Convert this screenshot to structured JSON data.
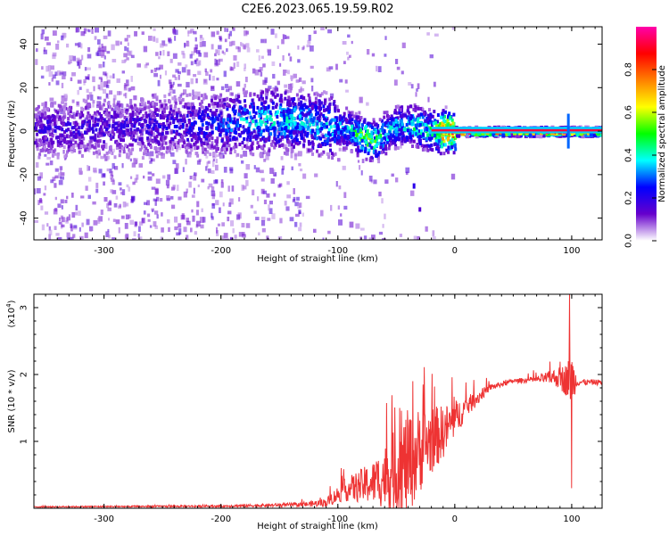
{
  "title": "C2E6.2023.065.19.59.R02",
  "chart_data": [
    {
      "type": "heatmap",
      "name": "spectrogram",
      "xlabel": "Height of straight line (km)",
      "ylabel": "Frequency (Hz)",
      "xlim": [
        -360,
        126
      ],
      "ylim": [
        -50,
        48
      ],
      "xticks": [
        -300,
        -200,
        -100,
        0,
        100
      ],
      "yticks": [
        -40,
        -20,
        0,
        20,
        40
      ],
      "colorbar": {
        "label": "Normalized spectral amplitude",
        "range": [
          0,
          1
        ],
        "ticks": [
          "0.0",
          "0.2",
          "0.4",
          "0.6",
          "0.8"
        ],
        "colors": [
          "#ffffff",
          "#6600cc",
          "#0000ff",
          "#00ffff",
          "#00ff00",
          "#ffff00",
          "#ff8000",
          "#ff0000",
          "#ff00aa"
        ]
      },
      "ridge": {
        "x": [
          -360,
          -300,
          -250,
          -200,
          -180,
          -150,
          -130,
          -110,
          -95,
          -80,
          -70,
          -60,
          -50,
          -40,
          -30,
          -20,
          -10,
          0,
          100,
          126
        ],
        "freq": [
          2,
          2,
          3,
          4,
          5,
          6,
          5,
          3,
          2,
          -2,
          -4,
          0,
          3,
          4,
          2,
          1,
          0.5,
          0.5,
          0.5,
          0.5
        ],
        "amplitude": [
          0.2,
          0.2,
          0.22,
          0.3,
          0.4,
          0.42,
          0.4,
          0.4,
          0.35,
          0.6,
          0.55,
          0.45,
          0.42,
          0.45,
          0.5,
          0.5,
          0.9,
          0.95,
          0.95,
          0.95
        ]
      }
    },
    {
      "type": "line",
      "name": "snr",
      "xlabel": "Height of straight line (km)",
      "ylabel": "SNR (10 * v/v)",
      "yscale_label": "(x10",
      "yscale_exp": "4",
      "xlim": [
        -360,
        126
      ],
      "ylim": [
        0,
        3.2
      ],
      "xticks": [
        -300,
        -200,
        -100,
        0,
        100
      ],
      "yticks": [
        1,
        2,
        3
      ],
      "color": "#ee3333",
      "envelope": {
        "x": [
          -360,
          -200,
          -130,
          -110,
          -95,
          -70,
          -50,
          -40,
          -25,
          -10,
          10,
          30,
          50,
          70,
          85,
          95,
          100,
          105,
          126
        ],
        "y": [
          0.02,
          0.03,
          0.05,
          0.08,
          0.25,
          0.35,
          0.5,
          0.6,
          0.9,
          1.1,
          1.5,
          1.8,
          1.9,
          1.92,
          1.95,
          1.9,
          1.9,
          1.88,
          1.88
        ],
        "spike_amplitude": [
          0.01,
          0.02,
          0.04,
          0.08,
          0.2,
          0.4,
          0.8,
          1.0,
          0.7,
          0.5,
          0.2,
          0.06,
          0.04,
          0.06,
          0.15,
          0.3,
          0.5,
          0.06,
          0.05
        ]
      },
      "peaks": [
        {
          "x": -47,
          "y": 1.5
        },
        {
          "x": -36,
          "y": 1.9
        },
        {
          "x": -27,
          "y": 1.85
        },
        {
          "x": 98,
          "y": 3.2
        },
        {
          "x": 100,
          "y": 0.3
        }
      ]
    }
  ]
}
